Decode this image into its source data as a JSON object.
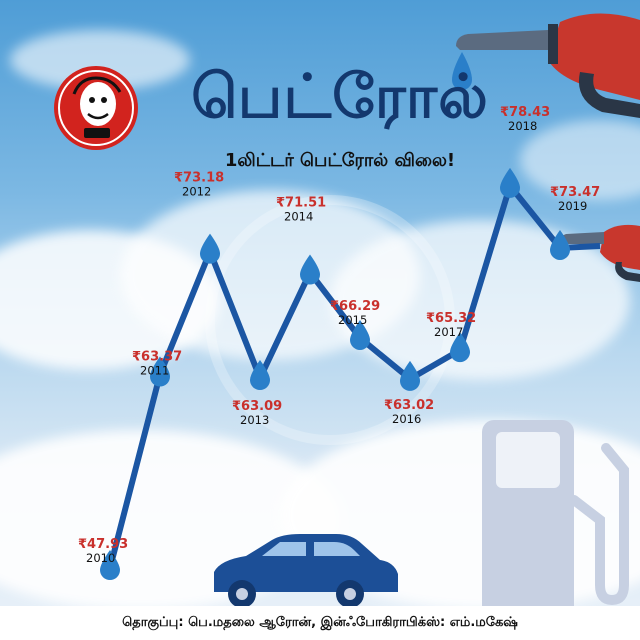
{
  "header": {
    "title": "பெட்ரோல்",
    "subtitle": "1லிட்டர் பெட்ரோல் விலை!"
  },
  "footer": {
    "credits": "தொகுப்பு: பெ.மதலை ஆரோன், இன்ஃபோகிராபிக்ஸ்: எம்.மகேஷ்"
  },
  "colors": {
    "line": "#1b56a3",
    "drop": "#2a7fc9",
    "price": "#c9302c",
    "title": "#13386e",
    "pump": "#c7d0e2",
    "car": "#1c4f97",
    "nozzle": "#c8372d"
  },
  "chart_data": {
    "type": "line",
    "currency": "₹",
    "x": [
      "2010",
      "2011",
      "2012",
      "2013",
      "2014",
      "2015",
      "2016",
      "2017",
      "2018",
      "2019"
    ],
    "series": [
      {
        "values": [
          47.93,
          63.37,
          73.18,
          63.09,
          71.51,
          66.29,
          63.02,
          65.32,
          78.43,
          73.47
        ]
      }
    ],
    "labels": [
      "₹47.93",
      "₹63.37",
      "₹73.18",
      "₹63.09",
      "₹71.51",
      "₹66.29",
      "₹63.02",
      "₹65.32",
      "₹78.43",
      "₹73.47"
    ]
  }
}
